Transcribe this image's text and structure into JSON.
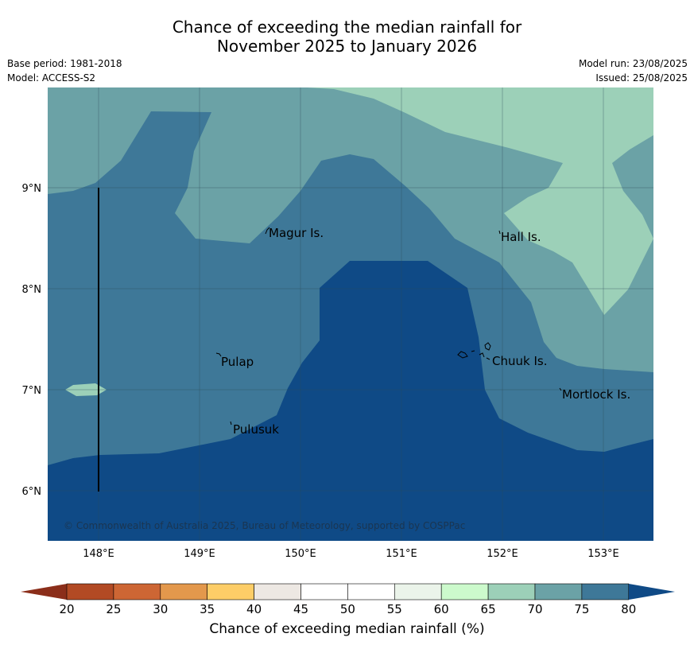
{
  "title": {
    "line1": "Chance of exceeding the median rainfall for",
    "line2": "November 2025 to January 2026"
  },
  "meta": {
    "base_period": "Base period: 1981-2018",
    "model": "Model: ACCESS-S2",
    "model_run": "Model run: 23/08/2025",
    "issued": "Issued: 25/08/2025"
  },
  "map": {
    "copyright": "© Commonwealth of Australia 2025, Bureau of Meteorology, supported by COSPPac",
    "lon_labels": [
      "148°E",
      "149°E",
      "150°E",
      "151°E",
      "152°E",
      "153°E"
    ],
    "lat_labels": [
      "9°N",
      "8°N",
      "7°N",
      "6°N"
    ],
    "places": [
      {
        "name": "Magur Is."
      },
      {
        "name": "Hall Is."
      },
      {
        "name": "Pulap"
      },
      {
        "name": "Chuuk Is."
      },
      {
        "name": "Mortlock Is."
      },
      {
        "name": "Pulusuk"
      }
    ]
  },
  "colorbar": {
    "label": "Chance of exceeding median rainfall (%)",
    "ticks": [
      "20",
      "25",
      "30",
      "35",
      "40",
      "45",
      "50",
      "55",
      "60",
      "65",
      "70",
      "75",
      "80"
    ],
    "colors": [
      "#8b2e1a",
      "#b24a24",
      "#cd6634",
      "#e3984c",
      "#fdcd67",
      "#ede8e3",
      "#ffffff",
      "#ffffff",
      "#ebf4ea",
      "#ccfacc",
      "#9cd0b8",
      "#6ba2a6",
      "#3e7898",
      "#0f4a86"
    ]
  }
}
